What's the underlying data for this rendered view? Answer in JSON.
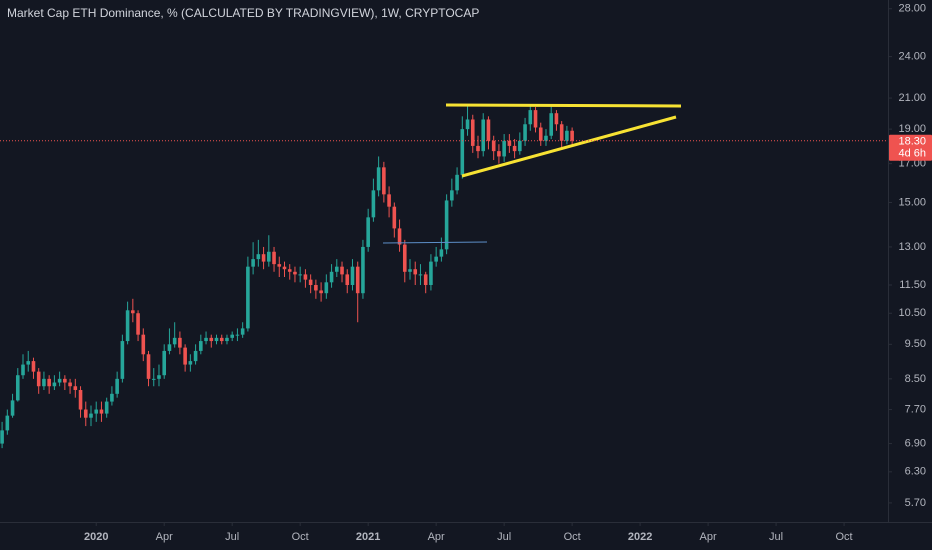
{
  "chart_data": {
    "type": "candlestick",
    "title": "Market Cap ETH Dominance, % (CALCULATED BY TRADINGVIEW), 1W, CRYPTOCAP",
    "log_scale": true,
    "grid": false,
    "up_color": "#26a69a",
    "down_color": "#ef5350",
    "ylim": [
      5.36,
      28.8
    ],
    "yticks": [
      {
        "value": 28,
        "label": "28.00"
      },
      {
        "value": 24,
        "label": "24.00"
      },
      {
        "value": 21,
        "label": "21.00"
      },
      {
        "value": 19,
        "label": "19.00"
      },
      {
        "value": 17,
        "label": "17.00"
      },
      {
        "value": 15,
        "label": "15.00"
      },
      {
        "value": 13,
        "label": "13.00"
      },
      {
        "value": 11.5,
        "label": "11.50"
      },
      {
        "value": 10.5,
        "label": "10.50"
      },
      {
        "value": 9.5,
        "label": "9.50"
      },
      {
        "value": 8.5,
        "label": "8.50"
      },
      {
        "value": 7.7,
        "label": "7.70"
      },
      {
        "value": 6.9,
        "label": "6.90"
      },
      {
        "value": 6.3,
        "label": "6.30"
      },
      {
        "value": 5.7,
        "label": "5.70"
      }
    ],
    "xlim": [
      -0.4,
      169.4
    ],
    "xticks": [
      {
        "value": 18,
        "label": "2020"
      },
      {
        "value": 31,
        "label": "Apr"
      },
      {
        "value": 44,
        "label": "Jul"
      },
      {
        "value": 57,
        "label": "Oct"
      },
      {
        "value": 70,
        "label": "2021"
      },
      {
        "value": 83,
        "label": "Apr"
      },
      {
        "value": 96,
        "label": "Jul"
      },
      {
        "value": 109,
        "label": "Oct"
      },
      {
        "value": 122,
        "label": "2022"
      },
      {
        "value": 135,
        "label": "Apr"
      },
      {
        "value": 148,
        "label": "Jul"
      },
      {
        "value": 161,
        "label": "Oct"
      }
    ],
    "open": [
      6.9,
      7.2,
      7.55,
      7.93,
      8.6,
      8.9,
      9.0,
      8.7,
      8.3,
      8.5,
      8.3,
      8.4,
      8.5,
      8.4,
      8.3,
      8.2,
      7.7,
      7.5,
      7.6,
      7.7,
      7.6,
      7.9,
      8.1,
      8.5,
      9.6,
      10.6,
      10.5,
      9.8,
      9.2,
      8.5,
      8.5,
      8.6,
      9.3,
      9.5,
      9.7,
      9.4,
      8.9,
      9.0,
      9.3,
      9.6,
      9.7,
      9.6,
      9.7,
      9.6,
      9.7,
      9.8,
      9.8,
      10.0,
      12.2,
      12.5,
      12.7,
      12.4,
      12.8,
      12.3,
      12.2,
      12.1,
      12.0,
      11.9,
      11.9,
      11.7,
      11.5,
      11.3,
      11.2,
      11.6,
      12.0,
      12.2,
      11.9,
      11.5,
      12.2,
      11.2,
      13.0,
      14.3,
      15.6,
      16.8,
      15.4,
      14.8,
      13.8,
      13.1,
      12.0,
      12.1,
      11.9,
      11.9,
      11.5,
      12.4,
      12.6,
      12.9,
      15.1,
      15.6,
      16.4,
      19.0,
      19.6,
      18.0,
      17.7,
      19.6,
      18.3,
      17.7,
      17.4,
      18.3,
      18.0,
      17.7,
      18.3,
      19.3,
      20.2,
      19.1,
      18.3,
      18.6,
      20.0,
      19.3,
      18.3,
      18.9
    ],
    "high": [
      7.4,
      7.7,
      8.1,
      8.8,
      9.2,
      9.3,
      9.1,
      8.8,
      8.7,
      8.6,
      8.6,
      8.7,
      8.6,
      8.5,
      8.5,
      8.3,
      7.9,
      7.8,
      7.9,
      7.9,
      8.0,
      8.3,
      8.7,
      9.8,
      10.9,
      11.0,
      10.6,
      10.0,
      9.3,
      8.8,
      8.9,
      9.5,
      10.0,
      10.2,
      9.9,
      9.5,
      9.2,
      9.5,
      9.8,
      9.9,
      9.8,
      9.8,
      9.8,
      9.8,
      9.9,
      10.0,
      10.2,
      12.6,
      13.2,
      13.3,
      13.0,
      13.5,
      13.0,
      12.6,
      12.4,
      12.3,
      12.2,
      12.2,
      12.1,
      11.9,
      11.7,
      11.6,
      11.9,
      12.3,
      12.5,
      12.4,
      12.1,
      12.5,
      12.4,
      13.3,
      14.7,
      16.2,
      17.4,
      17.1,
      15.8,
      15.0,
      14.2,
      13.3,
      12.5,
      12.4,
      12.3,
      12.0,
      12.7,
      13.0,
      13.4,
      15.4,
      16.2,
      16.8,
      19.8,
      20.6,
      19.9,
      18.6,
      20.0,
      19.8,
      18.6,
      18.1,
      18.7,
      18.7,
      18.4,
      18.8,
      19.7,
      20.6,
      20.4,
      19.4,
      19.0,
      20.5,
      20.2,
      19.5,
      19.2,
      19.1
    ],
    "low": [
      6.8,
      7.1,
      7.5,
      7.9,
      8.5,
      8.7,
      8.5,
      8.1,
      8.2,
      8.1,
      8.2,
      8.3,
      8.2,
      8.1,
      8.0,
      7.5,
      7.3,
      7.3,
      7.4,
      7.4,
      7.5,
      7.8,
      8.0,
      8.4,
      9.5,
      10.2,
      9.6,
      9.0,
      8.3,
      8.3,
      8.3,
      8.5,
      9.2,
      9.4,
      9.2,
      8.7,
      8.7,
      8.9,
      9.2,
      9.5,
      9.4,
      9.5,
      9.5,
      9.5,
      9.6,
      9.6,
      9.7,
      9.9,
      11.9,
      12.2,
      12.1,
      12.2,
      12.0,
      11.8,
      11.8,
      11.7,
      11.6,
      11.6,
      11.4,
      11.2,
      11.0,
      10.9,
      11.0,
      11.4,
      11.8,
      11.6,
      11.2,
      11.3,
      10.2,
      11.0,
      12.8,
      14.1,
      15.3,
      15.0,
      14.3,
      13.4,
      12.8,
      11.6,
      11.7,
      11.5,
      11.5,
      11.2,
      11.3,
      12.2,
      12.4,
      12.7,
      14.8,
      15.4,
      16.2,
      18.6,
      17.6,
      17.3,
      17.4,
      17.8,
      17.2,
      17.0,
      17.1,
      17.6,
      17.3,
      17.5,
      18.0,
      18.9,
      18.8,
      18.0,
      18.0,
      18.4,
      18.9,
      17.9,
      18.1,
      18.0
    ],
    "close": [
      7.2,
      7.55,
      7.93,
      8.6,
      8.9,
      9.0,
      8.7,
      8.3,
      8.5,
      8.3,
      8.4,
      8.5,
      8.4,
      8.3,
      8.2,
      7.7,
      7.5,
      7.6,
      7.7,
      7.6,
      7.9,
      8.1,
      8.5,
      9.6,
      10.6,
      10.5,
      9.8,
      9.2,
      8.5,
      8.5,
      8.6,
      9.3,
      9.5,
      9.7,
      9.4,
      8.9,
      9.0,
      9.3,
      9.6,
      9.7,
      9.6,
      9.7,
      9.6,
      9.7,
      9.8,
      9.8,
      10.0,
      12.2,
      12.5,
      12.7,
      12.4,
      12.8,
      12.3,
      12.2,
      12.1,
      12.0,
      11.9,
      11.9,
      11.7,
      11.5,
      11.3,
      11.2,
      11.6,
      12.0,
      12.2,
      11.9,
      11.5,
      12.2,
      11.2,
      13.0,
      14.3,
      15.6,
      16.8,
      15.4,
      14.8,
      13.8,
      13.1,
      12.0,
      12.1,
      11.9,
      11.9,
      11.5,
      12.4,
      12.6,
      12.9,
      15.1,
      15.6,
      16.4,
      19.0,
      19.6,
      18.0,
      17.7,
      19.6,
      18.3,
      17.7,
      17.4,
      18.3,
      18.0,
      17.7,
      18.3,
      19.3,
      20.2,
      19.1,
      18.3,
      18.6,
      20.0,
      19.3,
      18.3,
      18.9,
      18.3
    ],
    "last_price": {
      "value": 18.3,
      "label": "18.30"
    },
    "countdown": "4d 6h"
  }
}
